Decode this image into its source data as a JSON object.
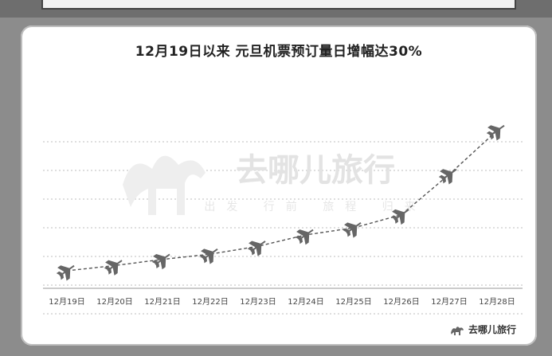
{
  "title": "12月19日以来 元旦机票预订量日增幅达30%",
  "watermark": {
    "main": "去哪儿旅行",
    "sub": "出发 行前 旅程 归来"
  },
  "brand": {
    "name": "去哪儿旅行",
    "icon": "camel-icon"
  },
  "colors": {
    "line": "#555555",
    "grid": "#bdbdbd",
    "marker": "#666666"
  },
  "chart_data": {
    "type": "line",
    "title": "12月19日以来 元旦机票预订量日增幅达30%",
    "categories": [
      "12月19日",
      "12月20日",
      "12月21日",
      "12月22日",
      "12月23日",
      "12月24日",
      "12月25日",
      "12月26日",
      "12月27日",
      "12月28日"
    ],
    "values": [
      1.0,
      1.3,
      1.65,
      1.95,
      2.4,
      3.05,
      3.45,
      4.2,
      6.5,
      9.0
    ],
    "ylim": [
      0,
      10
    ],
    "grid": true,
    "marker": "airplane-icon",
    "line_style": "dashed"
  }
}
